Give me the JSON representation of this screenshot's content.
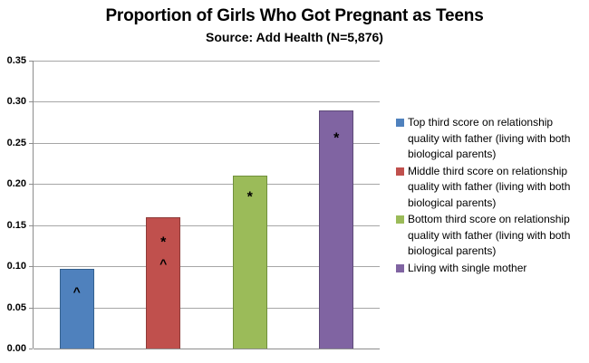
{
  "title": "Proportion of Girls Who Got Pregnant as Teens",
  "subtitle": "Source: Add Health (N=5,876)",
  "chart_data": {
    "type": "bar",
    "title": "Proportion of Girls Who Got Pregnant as Teens",
    "subtitle": "Source: Add Health (N=5,876)",
    "xlabel": "",
    "ylabel": "",
    "ylim": [
      0,
      0.35
    ],
    "ytick_step": 0.05,
    "ytick_labels": [
      "0.00",
      "0.05",
      "0.10",
      "0.15",
      "0.20",
      "0.25",
      "0.30",
      "0.35"
    ],
    "grid": true,
    "legend_position": "right",
    "axis_color": "#8c8c8c",
    "gridline_color": "#a6a6a6",
    "series": [
      {
        "name": "Top third score on relationship quality with father (living with both biological parents)",
        "value": 0.097,
        "color": "#4F81BD",
        "border_color": "#35618F",
        "annotations": [
          {
            "symbol": "^",
            "at": 0.073
          }
        ]
      },
      {
        "name": "Middle third score on relationship quality with father (living with both biological parents)",
        "value": 0.16,
        "color": "#C0504D",
        "border_color": "#8E3B39",
        "annotations": [
          {
            "symbol": "*",
            "at": 0.131
          },
          {
            "symbol": "^",
            "at": 0.107
          }
        ]
      },
      {
        "name": "Bottom third score on relationship quality with father (living with both biological parents)",
        "value": 0.21,
        "color": "#9BBB59",
        "border_color": "#71903C",
        "annotations": [
          {
            "symbol": "*",
            "at": 0.186
          }
        ]
      },
      {
        "name": "Living with single mother",
        "value": 0.29,
        "color": "#8064A2",
        "border_color": "#5E4A78",
        "annotations": [
          {
            "symbol": "*",
            "at": 0.258
          }
        ]
      }
    ]
  }
}
